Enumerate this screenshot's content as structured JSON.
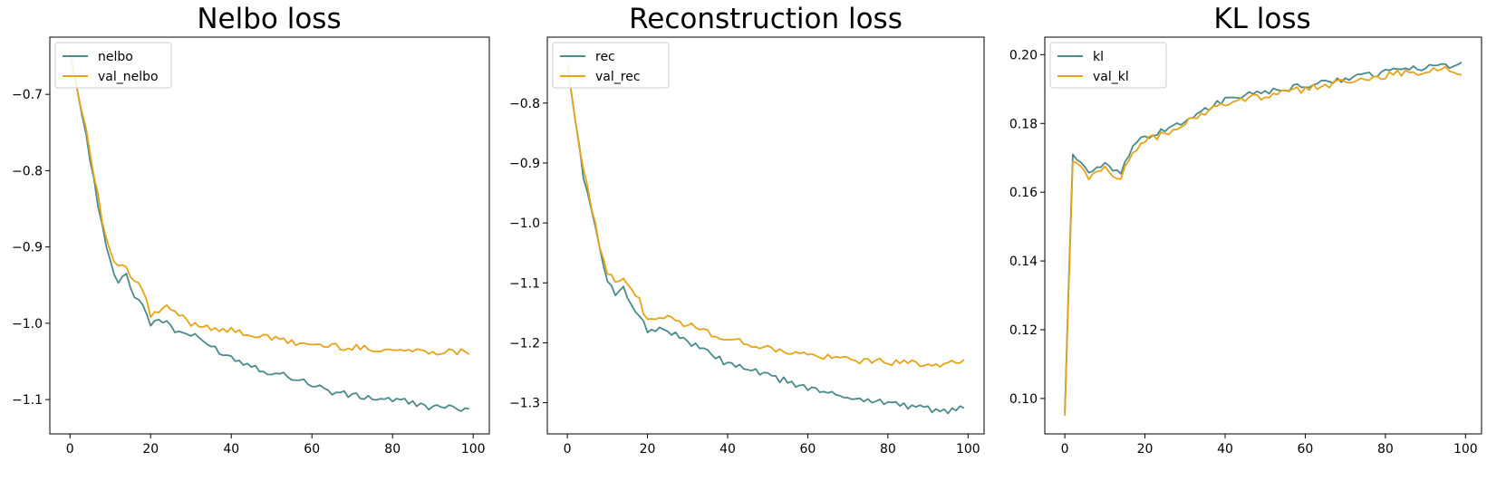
{
  "chart_data": [
    {
      "type": "line",
      "title": "Nelbo loss",
      "xlabel": "",
      "ylabel": "",
      "xlim": [
        -5,
        104
      ],
      "ylim": [
        -1.145,
        -0.625
      ],
      "xticks": [
        0,
        20,
        40,
        60,
        80,
        100
      ],
      "yticks": [
        -0.7,
        -0.8,
        -0.9,
        -1.0,
        -1.1
      ],
      "xtick_labels": [
        "0",
        "20",
        "40",
        "60",
        "80",
        "100"
      ],
      "ytick_labels": [
        "−0.7",
        "−0.8",
        "−0.9",
        "−1.0",
        "−1.1"
      ],
      "legend_position": "top-left",
      "grid": false,
      "series": [
        {
          "name": "nelbo",
          "color": "#4b8a8a",
          "anchors": [
            [
              0,
              -0.645
            ],
            [
              2,
              -0.7
            ],
            [
              4,
              -0.755
            ],
            [
              6,
              -0.815
            ],
            [
              8,
              -0.875
            ],
            [
              10,
              -0.92
            ],
            [
              12,
              -0.945
            ],
            [
              14,
              -0.935
            ],
            [
              16,
              -0.965
            ],
            [
              18,
              -0.975
            ],
            [
              20,
              -1.0
            ],
            [
              24,
              -0.997
            ],
            [
              26,
              -1.01
            ],
            [
              30,
              -1.015
            ],
            [
              35,
              -1.03
            ],
            [
              40,
              -1.045
            ],
            [
              45,
              -1.055
            ],
            [
              50,
              -1.065
            ],
            [
              55,
              -1.07
            ],
            [
              60,
              -1.08
            ],
            [
              65,
              -1.09
            ],
            [
              70,
              -1.095
            ],
            [
              75,
              -1.098
            ],
            [
              80,
              -1.1
            ],
            [
              85,
              -1.105
            ],
            [
              90,
              -1.11
            ],
            [
              95,
              -1.112
            ],
            [
              99,
              -1.11
            ]
          ]
        },
        {
          "name": "val_nelbo",
          "color": "#e8a317",
          "anchors": [
            [
              0,
              -0.645
            ],
            [
              2,
              -0.7
            ],
            [
              4,
              -0.745
            ],
            [
              6,
              -0.805
            ],
            [
              8,
              -0.865
            ],
            [
              10,
              -0.91
            ],
            [
              12,
              -0.925
            ],
            [
              14,
              -0.93
            ],
            [
              16,
              -0.945
            ],
            [
              18,
              -0.955
            ],
            [
              20,
              -0.99
            ],
            [
              24,
              -0.98
            ],
            [
              26,
              -0.985
            ],
            [
              30,
              -1.0
            ],
            [
              35,
              -1.005
            ],
            [
              40,
              -1.01
            ],
            [
              45,
              -1.015
            ],
            [
              50,
              -1.02
            ],
            [
              55,
              -1.025
            ],
            [
              60,
              -1.028
            ],
            [
              65,
              -1.03
            ],
            [
              70,
              -1.032
            ],
            [
              75,
              -1.033
            ],
            [
              80,
              -1.035
            ],
            [
              85,
              -1.036
            ],
            [
              90,
              -1.037
            ],
            [
              95,
              -1.037
            ],
            [
              99,
              -1.037
            ]
          ]
        }
      ]
    },
    {
      "type": "line",
      "title": "Reconstruction loss",
      "xlabel": "",
      "ylabel": "",
      "xlim": [
        -5,
        104
      ],
      "ylim": [
        -1.352,
        -0.69
      ],
      "xticks": [
        0,
        20,
        40,
        60,
        80,
        100
      ],
      "yticks": [
        -0.8,
        -0.9,
        -1.0,
        -1.1,
        -1.2,
        -1.3
      ],
      "xtick_labels": [
        "0",
        "20",
        "40",
        "60",
        "80",
        "100"
      ],
      "ytick_labels": [
        "−0.8",
        "−0.9",
        "−1.0",
        "−1.1",
        "−1.2",
        "−1.3"
      ],
      "legend_position": "top-left",
      "grid": false,
      "series": [
        {
          "name": "rec",
          "color": "#4b8a8a",
          "anchors": [
            [
              0,
              -0.735
            ],
            [
              2,
              -0.83
            ],
            [
              4,
              -0.92
            ],
            [
              6,
              -0.98
            ],
            [
              8,
              -1.04
            ],
            [
              10,
              -1.1
            ],
            [
              12,
              -1.12
            ],
            [
              14,
              -1.105
            ],
            [
              16,
              -1.135
            ],
            [
              18,
              -1.155
            ],
            [
              20,
              -1.18
            ],
            [
              24,
              -1.175
            ],
            [
              28,
              -1.19
            ],
            [
              32,
              -1.205
            ],
            [
              36,
              -1.22
            ],
            [
              40,
              -1.235
            ],
            [
              45,
              -1.245
            ],
            [
              50,
              -1.255
            ],
            [
              55,
              -1.265
            ],
            [
              60,
              -1.275
            ],
            [
              65,
              -1.285
            ],
            [
              70,
              -1.29
            ],
            [
              75,
              -1.295
            ],
            [
              80,
              -1.3
            ],
            [
              85,
              -1.305
            ],
            [
              90,
              -1.31
            ],
            [
              95,
              -1.315
            ],
            [
              99,
              -1.31
            ]
          ]
        },
        {
          "name": "val_rec",
          "color": "#e8a317",
          "anchors": [
            [
              0,
              -0.735
            ],
            [
              2,
              -0.83
            ],
            [
              4,
              -0.91
            ],
            [
              6,
              -0.975
            ],
            [
              8,
              -1.035
            ],
            [
              10,
              -1.08
            ],
            [
              12,
              -1.095
            ],
            [
              14,
              -1.09
            ],
            [
              16,
              -1.115
            ],
            [
              18,
              -1.13
            ],
            [
              20,
              -1.165
            ],
            [
              24,
              -1.155
            ],
            [
              28,
              -1.165
            ],
            [
              32,
              -1.175
            ],
            [
              36,
              -1.185
            ],
            [
              40,
              -1.195
            ],
            [
              45,
              -1.2
            ],
            [
              50,
              -1.21
            ],
            [
              55,
              -1.215
            ],
            [
              60,
              -1.22
            ],
            [
              65,
              -1.225
            ],
            [
              70,
              -1.228
            ],
            [
              75,
              -1.23
            ],
            [
              80,
              -1.232
            ],
            [
              85,
              -1.234
            ],
            [
              90,
              -1.235
            ],
            [
              95,
              -1.235
            ],
            [
              99,
              -1.233
            ]
          ]
        }
      ]
    },
    {
      "type": "line",
      "title": "KL loss",
      "xlabel": "",
      "ylabel": "",
      "xlim": [
        -5,
        104
      ],
      "ylim": [
        0.0897,
        0.2051
      ],
      "xticks": [
        0,
        20,
        40,
        60,
        80,
        100
      ],
      "yticks": [
        0.1,
        0.12,
        0.14,
        0.16,
        0.18,
        0.2
      ],
      "xtick_labels": [
        "0",
        "20",
        "40",
        "60",
        "80",
        "100"
      ],
      "ytick_labels": [
        "0.10",
        "0.12",
        "0.14",
        "0.16",
        "0.18",
        "0.20"
      ],
      "legend_position": "top-left",
      "grid": false,
      "series": [
        {
          "name": "kl",
          "color": "#4b8a8a",
          "anchors": [
            [
              0,
              0.096
            ],
            [
              1,
              0.135
            ],
            [
              2,
              0.171
            ],
            [
              4,
              0.169
            ],
            [
              6,
              0.165
            ],
            [
              8,
              0.167
            ],
            [
              10,
              0.168
            ],
            [
              12,
              0.166
            ],
            [
              14,
              0.165
            ],
            [
              16,
              0.171
            ],
            [
              18,
              0.174
            ],
            [
              20,
              0.176
            ],
            [
              25,
              0.178
            ],
            [
              30,
              0.181
            ],
            [
              35,
              0.184
            ],
            [
              40,
              0.187
            ],
            [
              45,
              0.188
            ],
            [
              50,
              0.189
            ],
            [
              55,
              0.19
            ],
            [
              60,
              0.191
            ],
            [
              65,
              0.192
            ],
            [
              70,
              0.193
            ],
            [
              75,
              0.194
            ],
            [
              80,
              0.195
            ],
            [
              85,
              0.196
            ],
            [
              90,
              0.196
            ],
            [
              95,
              0.197
            ],
            [
              99,
              0.197
            ]
          ]
        },
        {
          "name": "val_kl",
          "color": "#e8a317",
          "anchors": [
            [
              0,
              0.095
            ],
            [
              1,
              0.133
            ],
            [
              2,
              0.169
            ],
            [
              4,
              0.168
            ],
            [
              6,
              0.164
            ],
            [
              8,
              0.166
            ],
            [
              10,
              0.167
            ],
            [
              12,
              0.165
            ],
            [
              14,
              0.164
            ],
            [
              16,
              0.17
            ],
            [
              18,
              0.173
            ],
            [
              20,
              0.175
            ],
            [
              25,
              0.177
            ],
            [
              30,
              0.18
            ],
            [
              35,
              0.183
            ],
            [
              40,
              0.186
            ],
            [
              45,
              0.187
            ],
            [
              50,
              0.188
            ],
            [
              55,
              0.189
            ],
            [
              60,
              0.19
            ],
            [
              65,
              0.191
            ],
            [
              70,
              0.192
            ],
            [
              75,
              0.193
            ],
            [
              80,
              0.194
            ],
            [
              85,
              0.195
            ],
            [
              90,
              0.195
            ],
            [
              95,
              0.196
            ],
            [
              99,
              0.195
            ]
          ]
        }
      ]
    }
  ]
}
